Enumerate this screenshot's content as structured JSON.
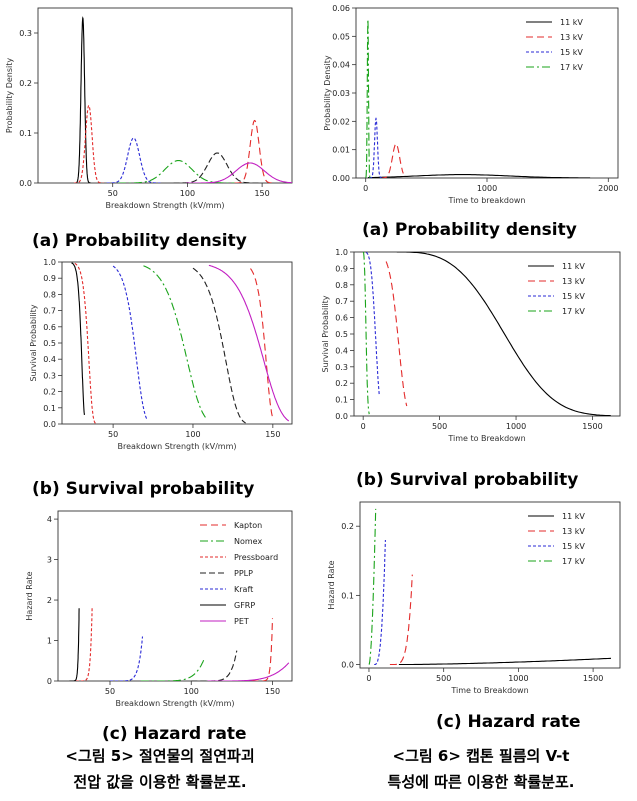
{
  "figure_captions": {
    "left_line1": "<그림 5> 절연물의 절연파괴",
    "left_line2": "전압 값을 이용한 확률분포.",
    "right_line1": "<그림 6> 캡톤 필름의 V-t",
    "right_line2": "특성에 따른 이용한 확률분포."
  },
  "colors": {
    "Kapton": "#e32b2b",
    "Nomex": "#1aa31a",
    "Pressboard": "#e32b2b",
    "PPLP": "#222222",
    "Kraft": "#2a2ad6",
    "GFRP": "#000000",
    "PET": "#c21fc2",
    "11 kV": "#000000",
    "13 kV": "#e32b2b",
    "15 kV": "#2a2ad6",
    "17 kV": "#1aa31a"
  },
  "chart_data": [
    {
      "id": "fig5a",
      "type": "line",
      "caption": "(a)  Probability density",
      "xlabel": "Breakdown Strength (kV/mm)",
      "ylabel": "Probability Density",
      "xlim": [
        0,
        170
      ],
      "ylim": [
        0,
        0.35
      ],
      "xticks": [
        50,
        100,
        150
      ],
      "yticks": [
        0.0,
        0.1,
        0.2,
        0.3
      ],
      "series": [
        {
          "name": "GFRP",
          "kind": "density",
          "mean": 30,
          "sd": 1.2,
          "peak": 0.33
        },
        {
          "name": "Pressboard",
          "kind": "density",
          "mean": 34,
          "sd": 2.2,
          "peak": 0.155
        },
        {
          "name": "Kraft",
          "kind": "density",
          "mean": 64,
          "sd": 4.0,
          "peak": 0.09
        },
        {
          "name": "Nomex",
          "kind": "density",
          "mean": 94,
          "sd": 9.0,
          "peak": 0.045
        },
        {
          "name": "PPLP",
          "kind": "density",
          "mean": 120,
          "sd": 6.5,
          "peak": 0.06
        },
        {
          "name": "Kapton",
          "kind": "density",
          "mean": 145,
          "sd": 3.0,
          "peak": 0.125
        },
        {
          "name": "PET",
          "kind": "density",
          "mean": 142,
          "sd": 9.5,
          "peak": 0.04
        }
      ]
    },
    {
      "id": "fig5b",
      "type": "line",
      "caption": "(b) Survival probability",
      "xlabel": "Breakdown Strength (kV/mm)",
      "ylabel": "Survival Probability",
      "xlim": [
        18,
        162
      ],
      "ylim": [
        0,
        1
      ],
      "xticks": [
        50,
        100,
        150
      ],
      "yticks": [
        0.0,
        0.1,
        0.2,
        0.3,
        0.4,
        0.5,
        0.6,
        0.7,
        0.8,
        0.9,
        1.0
      ],
      "series": [
        {
          "name": "GFRP",
          "kind": "survival",
          "start": 24,
          "end": 32,
          "scale": 30.5,
          "shape": 22
        },
        {
          "name": "Pressboard",
          "kind": "survival",
          "start": 26,
          "end": 40,
          "scale": 35,
          "shape": 16
        },
        {
          "name": "Kraft",
          "kind": "survival",
          "start": 50,
          "end": 71,
          "scale": 65,
          "shape": 14
        },
        {
          "name": "Nomex",
          "kind": "survival",
          "start": 69,
          "end": 108,
          "scale": 97,
          "shape": 11
        },
        {
          "name": "PPLP",
          "kind": "survival",
          "start": 100,
          "end": 133,
          "scale": 121,
          "shape": 17
        },
        {
          "name": "Kapton",
          "kind": "survival",
          "start": 136,
          "end": 150,
          "scale": 146,
          "shape": 45
        },
        {
          "name": "PET",
          "kind": "survival",
          "start": 110,
          "end": 160,
          "scale": 145,
          "shape": 14
        }
      ]
    },
    {
      "id": "fig5c",
      "type": "line",
      "caption": "(c) Hazard rate",
      "xlabel": "Breakdown Strength (kV/mm)",
      "ylabel": "Hazard Rate",
      "xlim": [
        18,
        162
      ],
      "ylim": [
        0,
        4.2
      ],
      "xticks": [
        50,
        100,
        150
      ],
      "yticks": [
        0,
        1,
        2,
        3,
        4
      ],
      "legend": {
        "position": "top-right",
        "entries": [
          "Kapton",
          "Nomex",
          "Pressboard",
          "PPLP",
          "Kraft",
          "GFRP",
          "PET"
        ]
      },
      "series": [
        {
          "name": "GFRP",
          "kind": "hazard",
          "start": 25,
          "end": 31,
          "scale": 31.5,
          "shape": 10,
          "norm": 4.0
        },
        {
          "name": "Pressboard",
          "kind": "hazard",
          "start": 29,
          "end": 39,
          "scale": 39,
          "shape": 9,
          "norm": 1.8
        },
        {
          "name": "Kraft",
          "kind": "hazard",
          "start": 50,
          "end": 70,
          "scale": 70,
          "shape": 8,
          "norm": 1.1
        },
        {
          "name": "Nomex",
          "kind": "hazard",
          "start": 69,
          "end": 108,
          "scale": 108,
          "shape": 7,
          "norm": 0.55
        },
        {
          "name": "PPLP",
          "kind": "hazard",
          "start": 100,
          "end": 128,
          "scale": 128,
          "shape": 8,
          "norm": 0.75
        },
        {
          "name": "Kapton",
          "kind": "hazard",
          "start": 137,
          "end": 150,
          "scale": 150,
          "shape": 12,
          "norm": 1.55
        },
        {
          "name": "PET",
          "kind": "hazard",
          "start": 110,
          "end": 160,
          "scale": 160,
          "shape": 5,
          "norm": 0.45
        }
      ]
    },
    {
      "id": "fig6a",
      "type": "line",
      "caption": "(a)  Probability density",
      "xlabel": "Time to breakdown",
      "ylabel": "Probability Density",
      "xlim": [
        -80,
        2080
      ],
      "ylim": [
        0,
        0.06
      ],
      "xticks": [
        0,
        1000,
        2000
      ],
      "yticks": [
        0.0,
        0.01,
        0.02,
        0.03,
        0.04,
        0.05,
        0.06
      ],
      "legend": {
        "position": "top-right",
        "entries": [
          "11 kV",
          "13 kV",
          "15 kV",
          "17 kV"
        ]
      },
      "series": [
        {
          "name": "11 kV",
          "kind": "density",
          "mean": 800,
          "sd": 380,
          "peak": 0.0012,
          "start": 20,
          "end": 1850
        },
        {
          "name": "13 kV",
          "kind": "density",
          "mean": 250,
          "sd": 30,
          "peak": 0.012,
          "start": 120,
          "end": 310
        },
        {
          "name": "15 kV",
          "kind": "density",
          "mean": 85,
          "sd": 12,
          "peak": 0.021,
          "start": 30,
          "end": 140
        },
        {
          "name": "17 kV",
          "kind": "density",
          "mean": 18,
          "sd": 5,
          "peak": 0.056,
          "start": 0,
          "end": 45
        }
      ]
    },
    {
      "id": "fig6b",
      "type": "line",
      "caption": "(b) Survival probability",
      "xlabel": "Time to Breakdown",
      "ylabel": "Survival Probability",
      "xlim": [
        -60,
        1680
      ],
      "ylim": [
        0,
        1
      ],
      "xticks": [
        0,
        500,
        1000,
        1500
      ],
      "yticks": [
        0.0,
        0.1,
        0.2,
        0.3,
        0.4,
        0.5,
        0.6,
        0.7,
        0.8,
        0.9,
        1.0
      ],
      "legend": {
        "position": "top-right",
        "entries": [
          "11 kV",
          "13 kV",
          "15 kV",
          "17 kV"
        ]
      },
      "series": [
        {
          "name": "11 kV",
          "kind": "survival",
          "start": 220,
          "end": 1620,
          "scale": 1010,
          "shape": 3.2,
          "origin": 220
        },
        {
          "name": "13 kV",
          "kind": "survival",
          "start": 150,
          "end": 285,
          "scale": 240,
          "shape": 6
        },
        {
          "name": "15 kV",
          "kind": "survival",
          "start": 20,
          "end": 105,
          "scale": 88,
          "shape": 4
        },
        {
          "name": "17 kV",
          "kind": "survival",
          "start": 0,
          "end": 40,
          "scale": 22,
          "shape": 2.5
        }
      ]
    },
    {
      "id": "fig6c",
      "type": "line",
      "caption": "(c) Hazard rate",
      "xlabel": "Time to Breakdown",
      "ylabel": "Hazard Rate",
      "xlim": [
        -60,
        1680
      ],
      "ylim": [
        -0.005,
        0.235
      ],
      "xticks": [
        0,
        500,
        1000,
        1500
      ],
      "yticks": [
        0.0,
        0.1,
        0.2
      ],
      "legend": {
        "position": "top-right",
        "entries": [
          "11 kV",
          "13 kV",
          "15 kV",
          "17 kV"
        ]
      },
      "series": [
        {
          "name": "11 kV",
          "kind": "hazard",
          "start": 200,
          "end": 1620,
          "scale": 1620,
          "shape": 1.6,
          "norm": 0.009
        },
        {
          "name": "13 kV",
          "kind": "hazard",
          "start": 140,
          "end": 290,
          "scale": 290,
          "shape": 5,
          "norm": 0.13
        },
        {
          "name": "15 kV",
          "kind": "hazard",
          "start": 35,
          "end": 110,
          "scale": 110,
          "shape": 3,
          "norm": 0.18
        },
        {
          "name": "17 kV",
          "kind": "hazard",
          "start": 0,
          "end": 45,
          "scale": 45,
          "shape": 1.8,
          "norm": 0.225
        }
      ]
    }
  ]
}
